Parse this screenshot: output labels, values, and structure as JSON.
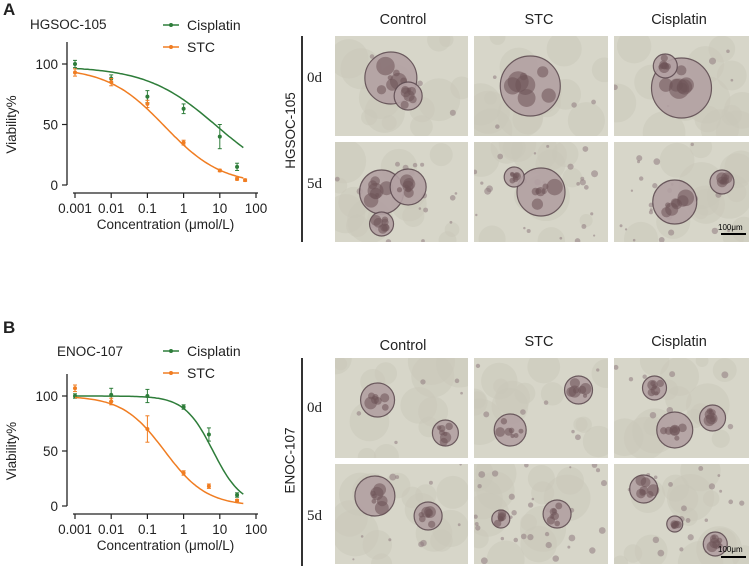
{
  "panels": [
    {
      "letter": "A",
      "cell_line": "HGSOC-105",
      "conditions": [
        "Control",
        "STC",
        "Cisplatin"
      ],
      "days": [
        "0d",
        "5d"
      ],
      "scale_bar": "100μm",
      "colors": {
        "cisplatin": "#2e7d3a",
        "stc": "#f07d22"
      }
    },
    {
      "letter": "B",
      "cell_line": "ENOC-107",
      "conditions": [
        "Control",
        "STC",
        "Cisplatin"
      ],
      "days": [
        "0d",
        "5d"
      ],
      "scale_bar": "100μm",
      "colors": {
        "cisplatin": "#2e7d3a",
        "stc": "#f07d22"
      }
    }
  ],
  "chart_data": [
    {
      "type": "scatter",
      "title": "HGSOC-105",
      "xlabel": "Concentration (μmol/L)",
      "ylabel": "Viability%",
      "xscale": "log",
      "xticks": [
        "0.001",
        "0.01",
        "0.1",
        "1",
        "10",
        "100"
      ],
      "yticks": [
        "0",
        "50",
        "100"
      ],
      "ylim": [
        0,
        110
      ],
      "legend": "top-right",
      "series": [
        {
          "name": "Cisplatin",
          "color": "#2e7d3a",
          "x": [
            0.001,
            0.01,
            0.1,
            1,
            10,
            30
          ],
          "y": [
            100,
            88,
            73,
            63,
            40,
            15
          ],
          "err": [
            3,
            3,
            5,
            4,
            10,
            3
          ],
          "fit": {
            "top": 98,
            "bottom": 0,
            "ic50": 8,
            "hill": 0.45
          }
        },
        {
          "name": "STC",
          "color": "#f07d22",
          "x": [
            0.001,
            0.01,
            0.1,
            1,
            10,
            30,
            50
          ],
          "y": [
            93,
            85,
            67,
            35,
            12,
            5,
            4
          ],
          "err": [
            3,
            3,
            3,
            2,
            1,
            1,
            1
          ],
          "fit": {
            "top": 97,
            "bottom": 0,
            "ic50": 0.3,
            "hill": 0.55
          }
        }
      ]
    },
    {
      "type": "scatter",
      "title": "ENOC-107",
      "xlabel": "Concentration (μmol/L)",
      "ylabel": "Viability%",
      "xscale": "log",
      "xticks": [
        "0.001",
        "0.01",
        "0.1",
        "1",
        "10",
        "100"
      ],
      "yticks": [
        "0",
        "50",
        "100"
      ],
      "ylim": [
        0,
        110
      ],
      "legend": "top-right",
      "series": [
        {
          "name": "Cisplatin",
          "color": "#2e7d3a",
          "x": [
            0.001,
            0.01,
            0.1,
            1,
            5,
            30
          ],
          "y": [
            100,
            101,
            100,
            90,
            65,
            10
          ],
          "err": [
            2,
            6,
            6,
            2,
            6,
            2
          ],
          "fit": {
            "top": 100,
            "bottom": 0,
            "ic50": 6.5,
            "hill": 1.1
          }
        },
        {
          "name": "STC",
          "color": "#f07d22",
          "x": [
            0.001,
            0.01,
            0.1,
            1,
            5,
            30
          ],
          "y": [
            107,
            95,
            70,
            30,
            18,
            5
          ],
          "err": [
            3,
            3,
            12,
            2,
            2,
            1
          ],
          "fit": {
            "top": 100,
            "bottom": 0,
            "ic50": 0.3,
            "hill": 0.75
          }
        }
      ]
    }
  ]
}
